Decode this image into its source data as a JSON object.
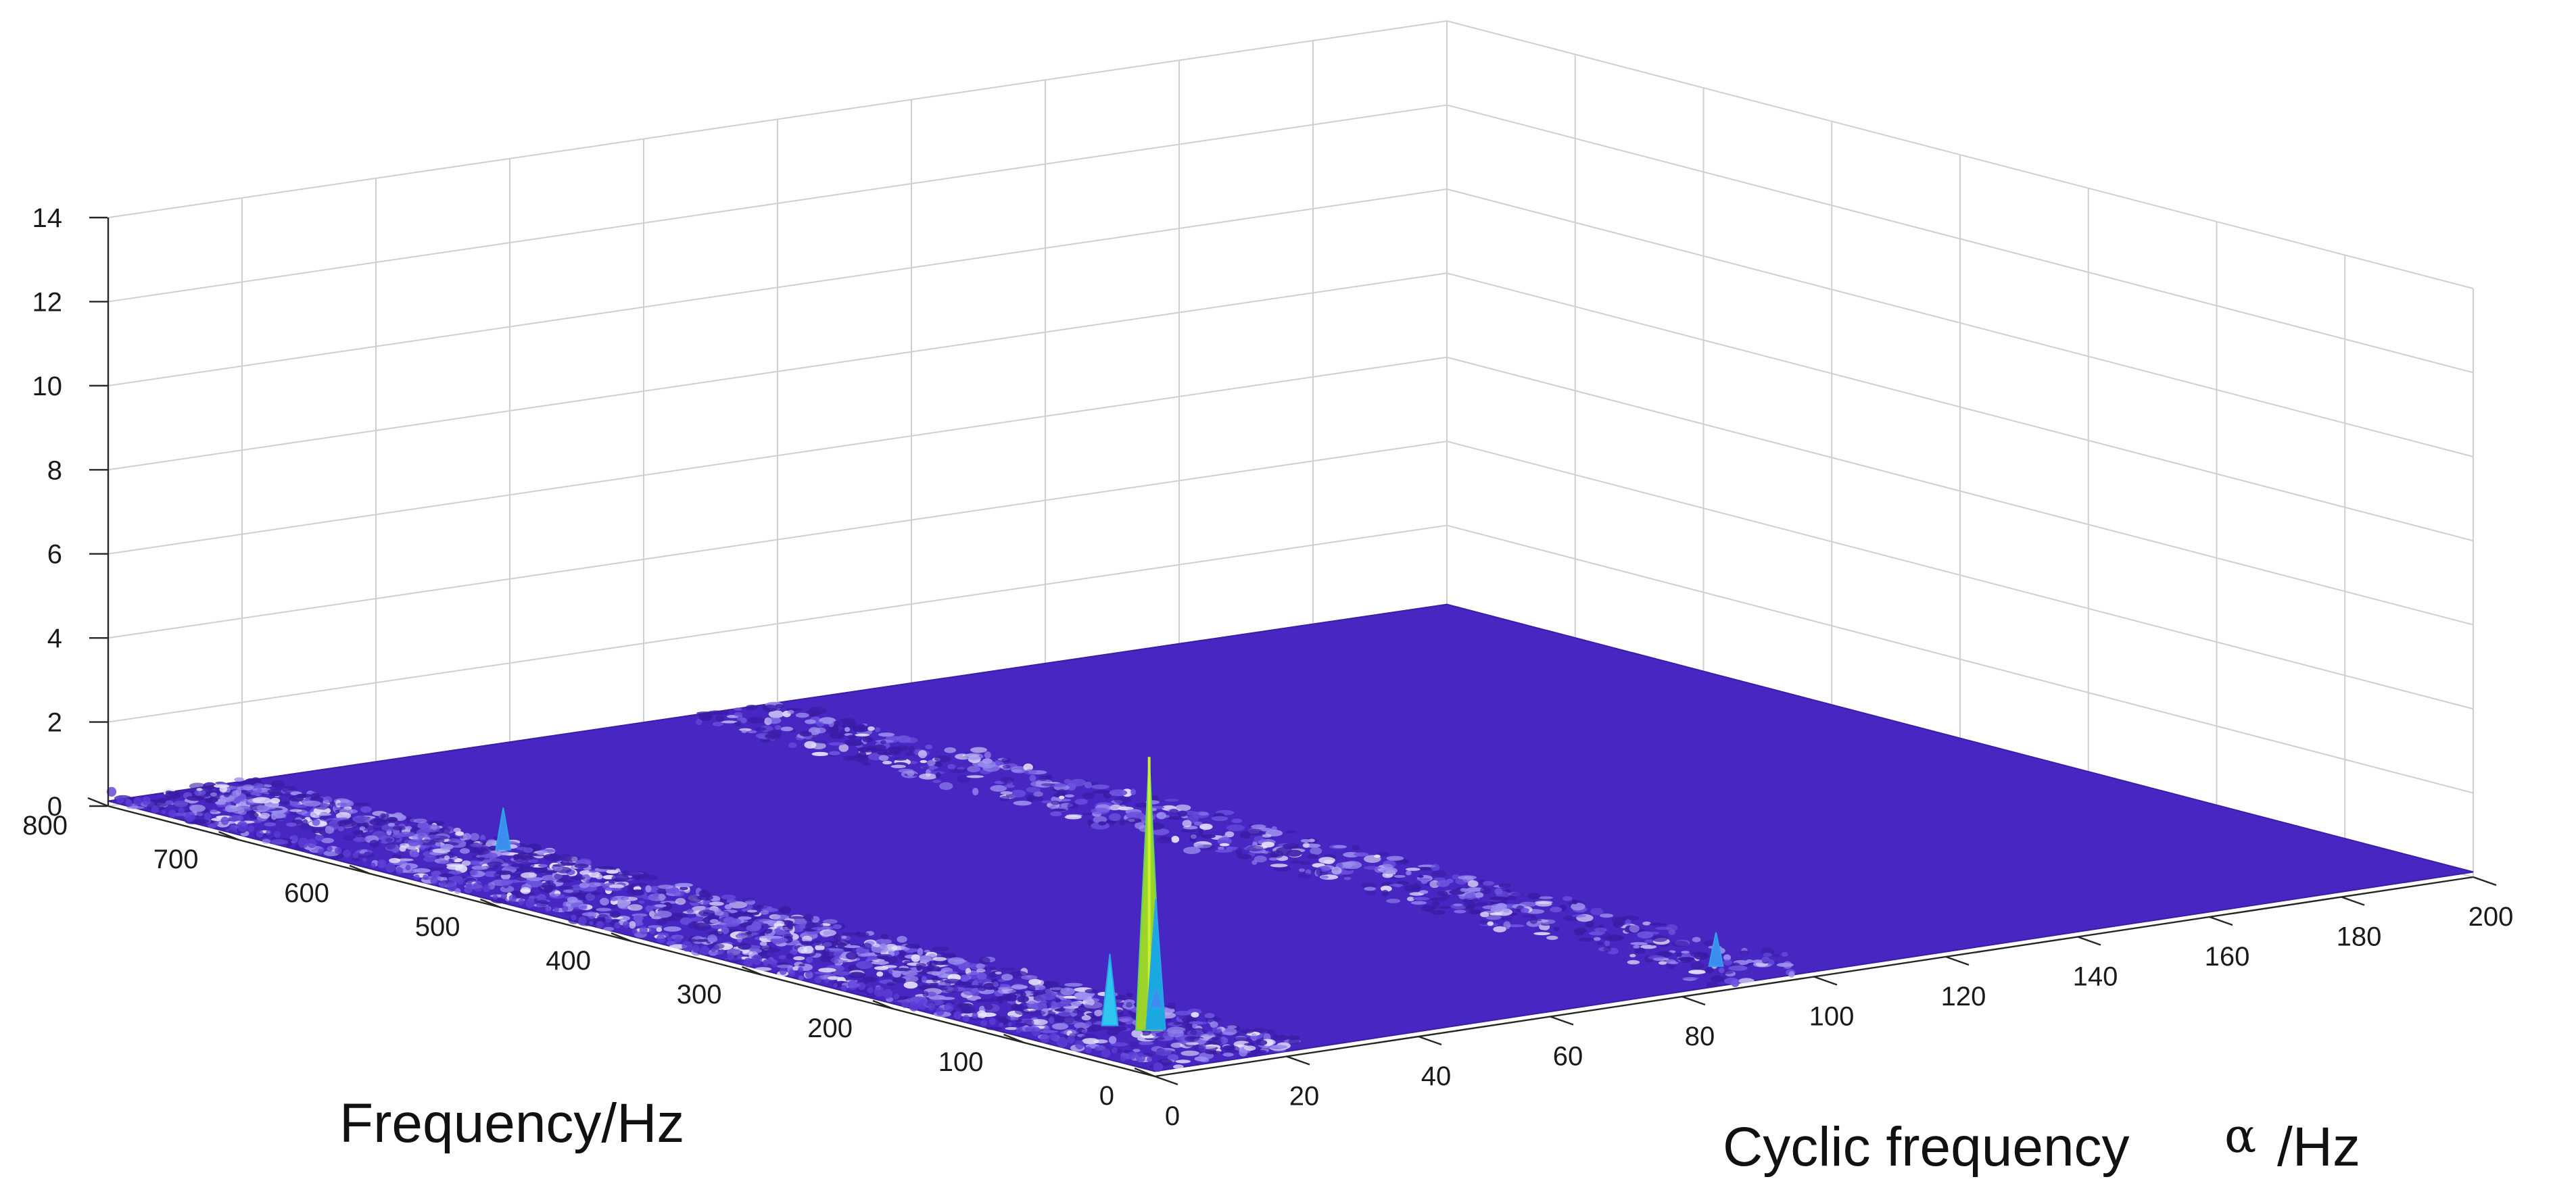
{
  "chart_data": {
    "type": "surface3d",
    "title": "",
    "xlabel": "Frequency/Hz",
    "ylabel_prefix": "Cyclic frequency",
    "ylabel_symbol": "α",
    "ylabel_suffix": "/Hz",
    "zlabel": "",
    "x_ticks": [
      "800",
      "700",
      "600",
      "500",
      "400",
      "300",
      "200",
      "100",
      "0"
    ],
    "x_tick_values": [
      800,
      700,
      600,
      500,
      400,
      300,
      200,
      100,
      0
    ],
    "y_ticks": [
      "0",
      "20",
      "40",
      "60",
      "80",
      "100",
      "120",
      "140",
      "160",
      "180",
      "200"
    ],
    "y_tick_values": [
      0,
      20,
      40,
      60,
      80,
      100,
      120,
      140,
      160,
      180,
      200
    ],
    "z_ticks": [
      "0",
      "2",
      "4",
      "6",
      "8",
      "10",
      "12",
      "14"
    ],
    "z_tick_values": [
      0,
      2,
      4,
      6,
      8,
      10,
      12,
      14
    ],
    "xlim": [
      0,
      800
    ],
    "ylim": [
      0,
      200
    ],
    "zlim": [
      0,
      14
    ],
    "grid": true,
    "colormap": "parula",
    "surface_base_color": "#4826c2",
    "peaks": [
      {
        "frequency": 80,
        "cyclic_frequency": 15,
        "amplitude": 6.6
      },
      {
        "frequency": 80,
        "cyclic_frequency": 16,
        "amplitude": 3.2
      },
      {
        "frequency": 100,
        "cyclic_frequency": 13,
        "amplitude": 1.8
      },
      {
        "frequency": 40,
        "cyclic_frequency": 93,
        "amplitude": 0.9
      },
      {
        "frequency": 600,
        "cyclic_frequency": 20,
        "amplitude": 1.1
      },
      {
        "frequency": 120,
        "cyclic_frequency": 24,
        "amplitude": 0.6
      }
    ]
  }
}
